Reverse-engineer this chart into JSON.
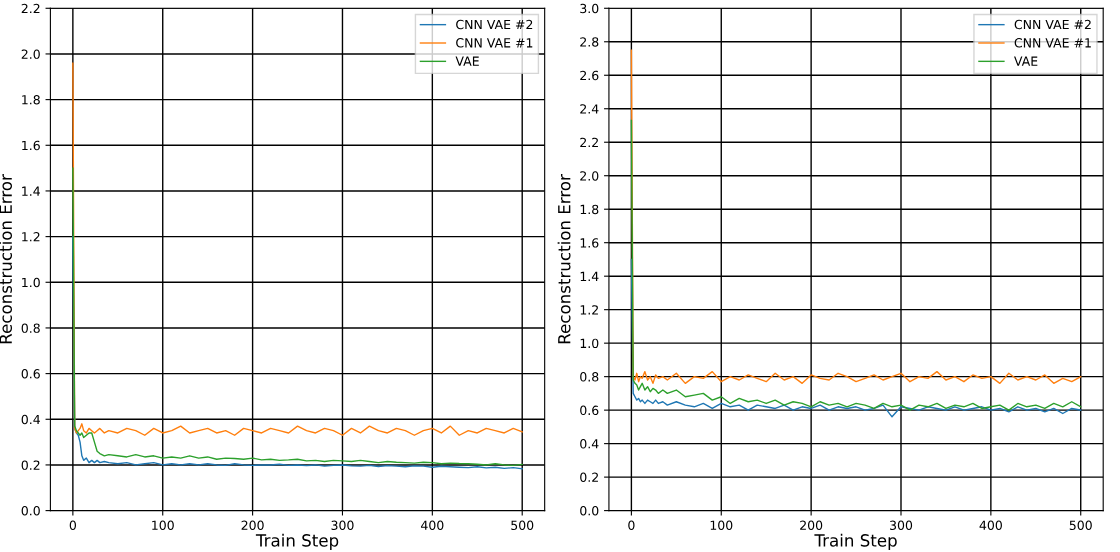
{
  "chart_data": [
    {
      "type": "line",
      "xlabel": "Train Step",
      "ylabel": "Reconstruction Error",
      "xlim": [
        -25,
        525
      ],
      "ylim": [
        0,
        2.2
      ],
      "xticks": [
        0,
        100,
        200,
        300,
        400,
        500
      ],
      "yticks": [
        {
          "value": 0,
          "label": "0.0"
        },
        {
          "value": 0.2,
          "label": "0.2"
        },
        {
          "value": 0.4,
          "label": "0.4"
        },
        {
          "value": 0.6,
          "label": "0.6"
        },
        {
          "value": 0.8,
          "label": "0.8"
        },
        {
          "value": 1.0,
          "label": "1.0"
        },
        {
          "value": 1.2,
          "label": "1.2"
        },
        {
          "value": 1.4,
          "label": "1.4"
        },
        {
          "value": 1.6,
          "label": "1.6"
        },
        {
          "value": 1.8,
          "label": "1.8"
        },
        {
          "value": 2.0,
          "label": "2.0"
        },
        {
          "value": 2.2,
          "label": "2.2"
        }
      ],
      "grid": true,
      "legend": "top right",
      "x": [
        0,
        2,
        4,
        6,
        8,
        10,
        12,
        15,
        18,
        21,
        24,
        27,
        30,
        35,
        40,
        50,
        60,
        70,
        80,
        90,
        100,
        110,
        120,
        130,
        140,
        150,
        160,
        170,
        180,
        190,
        200,
        210,
        220,
        230,
        240,
        250,
        260,
        270,
        280,
        290,
        300,
        310,
        320,
        330,
        340,
        350,
        360,
        370,
        380,
        390,
        400,
        410,
        420,
        430,
        440,
        450,
        460,
        470,
        480,
        490,
        500
      ],
      "series": [
        {
          "name": "CNN VAE #2",
          "color": "#1f77b4",
          "values": [
            1.2,
            0.36,
            0.34,
            0.33,
            0.3,
            0.24,
            0.22,
            0.23,
            0.21,
            0.22,
            0.21,
            0.22,
            0.21,
            0.215,
            0.21,
            0.205,
            0.21,
            0.2,
            0.205,
            0.21,
            0.2,
            0.205,
            0.2,
            0.205,
            0.2,
            0.205,
            0.2,
            0.198,
            0.205,
            0.2,
            0.198,
            0.2,
            0.2,
            0.203,
            0.198,
            0.2,
            0.197,
            0.2,
            0.195,
            0.198,
            0.2,
            0.196,
            0.195,
            0.198,
            0.193,
            0.197,
            0.195,
            0.192,
            0.196,
            0.195,
            0.19,
            0.194,
            0.192,
            0.19,
            0.188,
            0.192,
            0.187,
            0.19,
            0.185,
            0.188,
            0.183
          ]
        },
        {
          "name": "CNN VAE #1",
          "color": "#ff7f0e",
          "values": [
            1.96,
            0.36,
            0.34,
            0.35,
            0.36,
            0.38,
            0.35,
            0.34,
            0.36,
            0.35,
            0.34,
            0.35,
            0.36,
            0.34,
            0.35,
            0.34,
            0.36,
            0.35,
            0.33,
            0.36,
            0.34,
            0.35,
            0.37,
            0.34,
            0.35,
            0.36,
            0.34,
            0.35,
            0.33,
            0.36,
            0.35,
            0.34,
            0.36,
            0.35,
            0.34,
            0.37,
            0.35,
            0.34,
            0.36,
            0.35,
            0.33,
            0.36,
            0.34,
            0.37,
            0.35,
            0.34,
            0.36,
            0.35,
            0.33,
            0.35,
            0.36,
            0.34,
            0.37,
            0.33,
            0.35,
            0.34,
            0.36,
            0.35,
            0.34,
            0.36,
            0.345
          ]
        },
        {
          "name": "VAE",
          "color": "#2ca02c",
          "values": [
            1.5,
            0.37,
            0.35,
            0.34,
            0.33,
            0.34,
            0.32,
            0.33,
            0.34,
            0.34,
            0.3,
            0.26,
            0.25,
            0.24,
            0.245,
            0.24,
            0.235,
            0.245,
            0.235,
            0.24,
            0.23,
            0.235,
            0.23,
            0.24,
            0.23,
            0.235,
            0.225,
            0.23,
            0.228,
            0.225,
            0.23,
            0.222,
            0.225,
            0.22,
            0.222,
            0.225,
            0.218,
            0.22,
            0.215,
            0.22,
            0.218,
            0.215,
            0.22,
            0.215,
            0.21,
            0.215,
            0.212,
            0.21,
            0.208,
            0.212,
            0.21,
            0.205,
            0.208,
            0.206,
            0.205,
            0.203,
            0.2,
            0.205,
            0.2,
            0.198,
            0.202
          ]
        }
      ]
    },
    {
      "type": "line",
      "xlabel": "Train Step",
      "ylabel": "Reconstruction Error",
      "xlim": [
        -25,
        525
      ],
      "ylim": [
        0,
        3.0
      ],
      "xticks": [
        0,
        100,
        200,
        300,
        400,
        500
      ],
      "yticks": [
        {
          "value": 0,
          "label": "0.0"
        },
        {
          "value": 0.2,
          "label": "0.2"
        },
        {
          "value": 0.4,
          "label": "0.4"
        },
        {
          "value": 0.6,
          "label": "0.6"
        },
        {
          "value": 0.8,
          "label": "0.8"
        },
        {
          "value": 1.0,
          "label": "1.0"
        },
        {
          "value": 1.2,
          "label": "1.2"
        },
        {
          "value": 1.4,
          "label": "1.4"
        },
        {
          "value": 1.6,
          "label": "1.6"
        },
        {
          "value": 1.8,
          "label": "1.8"
        },
        {
          "value": 2.0,
          "label": "2.0"
        },
        {
          "value": 2.2,
          "label": "2.2"
        },
        {
          "value": 2.4,
          "label": "2.4"
        },
        {
          "value": 2.6,
          "label": "2.6"
        },
        {
          "value": 2.8,
          "label": "2.8"
        },
        {
          "value": 3.0,
          "label": "3.0"
        }
      ],
      "grid": true,
      "legend": "top right",
      "x": [
        0,
        2,
        4,
        6,
        8,
        10,
        12,
        15,
        18,
        21,
        24,
        27,
        30,
        35,
        40,
        50,
        60,
        70,
        80,
        90,
        100,
        110,
        120,
        130,
        140,
        150,
        160,
        170,
        180,
        190,
        200,
        210,
        220,
        230,
        240,
        250,
        260,
        270,
        280,
        290,
        300,
        310,
        320,
        330,
        340,
        350,
        360,
        370,
        380,
        390,
        400,
        410,
        420,
        430,
        440,
        450,
        460,
        470,
        480,
        490,
        500
      ],
      "series": [
        {
          "name": "CNN VAE #2",
          "color": "#1f77b4",
          "values": [
            1.5,
            0.7,
            0.68,
            0.66,
            0.67,
            0.65,
            0.66,
            0.64,
            0.66,
            0.65,
            0.64,
            0.66,
            0.64,
            0.65,
            0.63,
            0.65,
            0.63,
            0.62,
            0.64,
            0.61,
            0.64,
            0.62,
            0.63,
            0.6,
            0.63,
            0.62,
            0.61,
            0.63,
            0.6,
            0.62,
            0.61,
            0.63,
            0.6,
            0.62,
            0.61,
            0.62,
            0.6,
            0.61,
            0.63,
            0.56,
            0.62,
            0.61,
            0.6,
            0.62,
            0.61,
            0.6,
            0.62,
            0.6,
            0.61,
            0.62,
            0.6,
            0.61,
            0.59,
            0.62,
            0.6,
            0.61,
            0.59,
            0.61,
            0.58,
            0.61,
            0.6
          ]
        },
        {
          "name": "CNN VAE #1",
          "color": "#ff7f0e",
          "values": [
            2.75,
            0.8,
            0.78,
            0.82,
            0.77,
            0.8,
            0.79,
            0.83,
            0.78,
            0.8,
            0.76,
            0.81,
            0.79,
            0.8,
            0.78,
            0.82,
            0.76,
            0.8,
            0.79,
            0.83,
            0.77,
            0.8,
            0.78,
            0.81,
            0.79,
            0.77,
            0.82,
            0.78,
            0.8,
            0.76,
            0.81,
            0.79,
            0.78,
            0.82,
            0.8,
            0.77,
            0.79,
            0.81,
            0.78,
            0.8,
            0.82,
            0.77,
            0.8,
            0.79,
            0.83,
            0.78,
            0.8,
            0.77,
            0.81,
            0.79,
            0.8,
            0.76,
            0.82,
            0.78,
            0.8,
            0.78,
            0.81,
            0.76,
            0.79,
            0.77,
            0.8
          ]
        },
        {
          "name": "VAE",
          "color": "#2ca02c",
          "values": [
            2.33,
            0.78,
            0.76,
            0.75,
            0.72,
            0.74,
            0.76,
            0.72,
            0.74,
            0.71,
            0.73,
            0.72,
            0.7,
            0.72,
            0.7,
            0.72,
            0.68,
            0.69,
            0.7,
            0.66,
            0.68,
            0.64,
            0.67,
            0.65,
            0.66,
            0.64,
            0.66,
            0.63,
            0.65,
            0.64,
            0.62,
            0.65,
            0.63,
            0.64,
            0.62,
            0.64,
            0.63,
            0.61,
            0.64,
            0.62,
            0.63,
            0.6,
            0.63,
            0.62,
            0.64,
            0.61,
            0.63,
            0.62,
            0.64,
            0.61,
            0.62,
            0.63,
            0.6,
            0.64,
            0.62,
            0.63,
            0.61,
            0.64,
            0.62,
            0.65,
            0.62
          ]
        }
      ]
    }
  ]
}
